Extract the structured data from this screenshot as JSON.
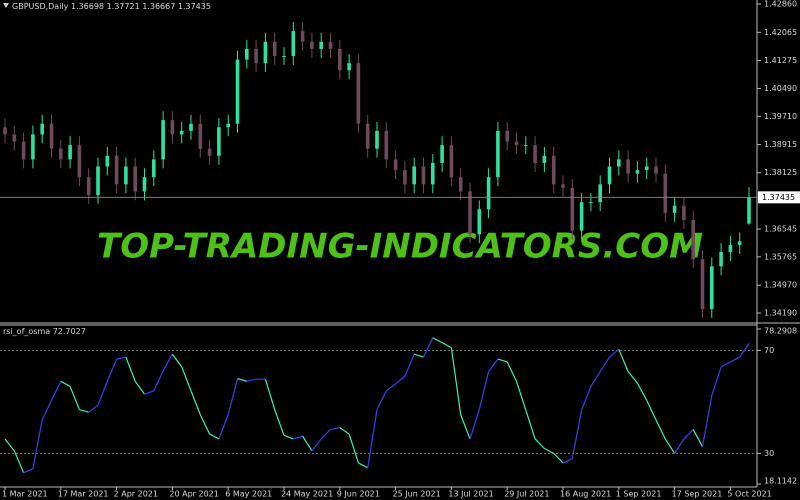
{
  "header": {
    "symbol": "GBPUSD,Daily"
  },
  "watermark": "TOP-TRADING-INDICATORS.COM",
  "chart_data": [
    {
      "type": "candlestick",
      "up_color": "#2fe0a0",
      "down_color": "#6e4a5c",
      "price_line_color": "#8a8a8a",
      "ylim": [
        1.33937,
        1.42972
      ],
      "yticks": [
        {
          "value": 1.4286,
          "label": "1.42860"
        },
        1.42065,
        1.41275,
        {
          "value": 1.4049,
          "label": "1.40490"
        },
        {
          "value": 1.3971,
          "label": "1.39710"
        },
        1.38915,
        1.38125,
        1.36545,
        1.35765,
        {
          "value": 1.3497,
          "label": "1.34970"
        },
        {
          "value": 1.3419,
          "label": "1.34190"
        }
      ],
      "categories": [
        "1 Mar 2021",
        null,
        null,
        null,
        null,
        null,
        "17 Mar 2021",
        null,
        null,
        null,
        null,
        null,
        "2 Apr 2021",
        null,
        null,
        null,
        null,
        null,
        "20 Apr 2021",
        null,
        null,
        null,
        null,
        null,
        "6 May 2021",
        null,
        null,
        null,
        null,
        null,
        "24 May 2021",
        null,
        null,
        null,
        null,
        null,
        "9 Jun 2021",
        null,
        null,
        null,
        null,
        null,
        "25 Jun 2021",
        null,
        null,
        null,
        null,
        null,
        "13 Jul 2021",
        null,
        null,
        null,
        null,
        null,
        "29 Jul 2021",
        null,
        null,
        null,
        null,
        null,
        "16 Aug 2021",
        null,
        null,
        null,
        null,
        null,
        "1 Sep 2021",
        null,
        null,
        null,
        null,
        null,
        "17 Sep 2021",
        null,
        null,
        null,
        null,
        null,
        "5 Oct 2021",
        null,
        null
      ],
      "open": [
        1.394,
        1.392,
        1.39,
        1.385,
        1.392,
        1.395,
        1.388,
        1.385,
        1.389,
        1.38,
        1.375,
        1.383,
        1.386,
        1.378,
        1.383,
        1.376,
        1.38,
        1.385,
        1.396,
        1.392,
        1.393,
        1.395,
        1.388,
        1.386,
        1.394,
        1.395,
        1.413,
        1.416,
        1.412,
        1.418,
        1.414,
        1.414,
        1.421,
        1.418,
        1.416,
        1.418,
        1.416,
        1.41,
        1.412,
        1.395,
        1.388,
        1.393,
        1.385,
        1.382,
        1.378,
        1.383,
        1.378,
        1.384,
        1.389,
        1.38,
        1.376,
        1.364,
        1.371,
        1.38,
        1.393,
        1.39,
        1.389,
        1.389,
        1.384,
        1.386,
        1.378,
        1.377,
        1.365,
        1.373,
        1.373,
        1.378,
        1.383,
        1.385,
        1.381,
        1.382,
        1.383,
        1.381,
        1.37,
        1.372,
        1.368,
        1.357,
        1.343,
        1.355,
        1.359,
        1.361,
        1.36698
      ],
      "high": [
        1.3965,
        1.3945,
        1.3925,
        1.3945,
        1.3975,
        1.3975,
        1.3905,
        1.3915,
        1.3915,
        1.3825,
        1.3855,
        1.3885,
        1.3885,
        1.3855,
        1.3855,
        1.3825,
        1.3875,
        1.3985,
        1.3985,
        1.3955,
        1.3975,
        1.3975,
        1.3905,
        1.3965,
        1.3975,
        1.4155,
        1.4185,
        1.4185,
        1.4205,
        1.4205,
        1.4165,
        1.4235,
        1.4235,
        1.4205,
        1.4205,
        1.4205,
        1.4185,
        1.4145,
        1.4145,
        1.3975,
        1.3955,
        1.3955,
        1.3875,
        1.3845,
        1.3855,
        1.3855,
        1.3865,
        1.3915,
        1.3915,
        1.3825,
        1.3785,
        1.3735,
        1.3825,
        1.3955,
        1.3955,
        1.3925,
        1.3915,
        1.3915,
        1.3885,
        1.3885,
        1.3805,
        1.3795,
        1.3755,
        1.3755,
        1.3805,
        1.3855,
        1.3875,
        1.3875,
        1.3845,
        1.3855,
        1.3855,
        1.3835,
        1.3745,
        1.3745,
        1.3705,
        1.3595,
        1.3575,
        1.3615,
        1.3635,
        1.3645,
        1.37721
      ],
      "low": [
        1.3895,
        1.3875,
        1.3825,
        1.3825,
        1.3895,
        1.3855,
        1.3825,
        1.3825,
        1.3775,
        1.3725,
        1.3725,
        1.3805,
        1.3755,
        1.3755,
        1.3735,
        1.3735,
        1.3775,
        1.3825,
        1.3895,
        1.3895,
        1.3905,
        1.3855,
        1.3835,
        1.3835,
        1.3915,
        1.3925,
        1.4105,
        1.4095,
        1.4095,
        1.4115,
        1.4115,
        1.4115,
        1.4155,
        1.4135,
        1.4135,
        1.4135,
        1.4075,
        1.4075,
        1.3925,
        1.3855,
        1.3855,
        1.3825,
        1.3795,
        1.3755,
        1.3755,
        1.3755,
        1.3755,
        1.3815,
        1.3775,
        1.3735,
        1.3615,
        1.3615,
        1.3685,
        1.3775,
        1.3875,
        1.3865,
        1.3865,
        1.3815,
        1.3815,
        1.3755,
        1.3745,
        1.3625,
        1.3625,
        1.3705,
        1.3705,
        1.3755,
        1.3805,
        1.3785,
        1.3785,
        1.3795,
        1.3785,
        1.3675,
        1.3675,
        1.3655,
        1.3545,
        1.3405,
        1.3405,
        1.3525,
        1.3565,
        1.3585,
        1.36667
      ],
      "close": [
        1.392,
        1.39,
        1.385,
        1.392,
        1.395,
        1.388,
        1.385,
        1.389,
        1.38,
        1.375,
        1.383,
        1.386,
        1.378,
        1.383,
        1.376,
        1.38,
        1.385,
        1.396,
        1.392,
        1.393,
        1.395,
        1.388,
        1.386,
        1.394,
        1.395,
        1.413,
        1.416,
        1.412,
        1.418,
        1.414,
        1.414,
        1.421,
        1.418,
        1.416,
        1.418,
        1.416,
        1.41,
        1.412,
        1.395,
        1.388,
        1.393,
        1.385,
        1.382,
        1.378,
        1.383,
        1.378,
        1.384,
        1.389,
        1.38,
        1.376,
        1.364,
        1.371,
        1.38,
        1.393,
        1.39,
        1.389,
        1.389,
        1.384,
        1.386,
        1.378,
        1.377,
        1.365,
        1.373,
        1.373,
        1.378,
        1.383,
        1.385,
        1.381,
        1.382,
        1.383,
        1.381,
        1.37,
        1.372,
        1.368,
        1.357,
        1.343,
        1.355,
        1.359,
        1.361,
        1.362,
        1.37435
      ]
    },
    {
      "type": "line",
      "title": "rsi_of_osma",
      "rising_color": "#4040e8",
      "falling_color": "#3ff0b0",
      "level_color": "#9a9a9a",
      "ylim": [
        18.1142,
        78.2908
      ],
      "yticks": [
        78.2908,
        70,
        30,
        18.1142
      ],
      "levels": [
        70,
        30
      ],
      "values": [
        35.6,
        31,
        22.5,
        24,
        43,
        50.6,
        58,
        56,
        47,
        46,
        48.7,
        58,
        66.6,
        67.4,
        58,
        53,
        54.3,
        62,
        68.5,
        63.6,
        54.3,
        45,
        37.5,
        35.6,
        45,
        59,
        58,
        58.8,
        58.8,
        47,
        37,
        35.6,
        36.7,
        31,
        35.6,
        39.3,
        40,
        37.5,
        26.3,
        24.4,
        47,
        54.3,
        57,
        60,
        68.5,
        67.4,
        74.9,
        73,
        71,
        45,
        35.6,
        47,
        61.8,
        66.6,
        65.5,
        58,
        46.8,
        35.6,
        31.9,
        30,
        26.3,
        28,
        46.8,
        56,
        61.8,
        67.4,
        70.4,
        61.8,
        57.3,
        50.6,
        43,
        35.6,
        30,
        35.6,
        39.3,
        32.6,
        52.4,
        63.6,
        65.5,
        67.4,
        72.7027
      ]
    }
  ]
}
